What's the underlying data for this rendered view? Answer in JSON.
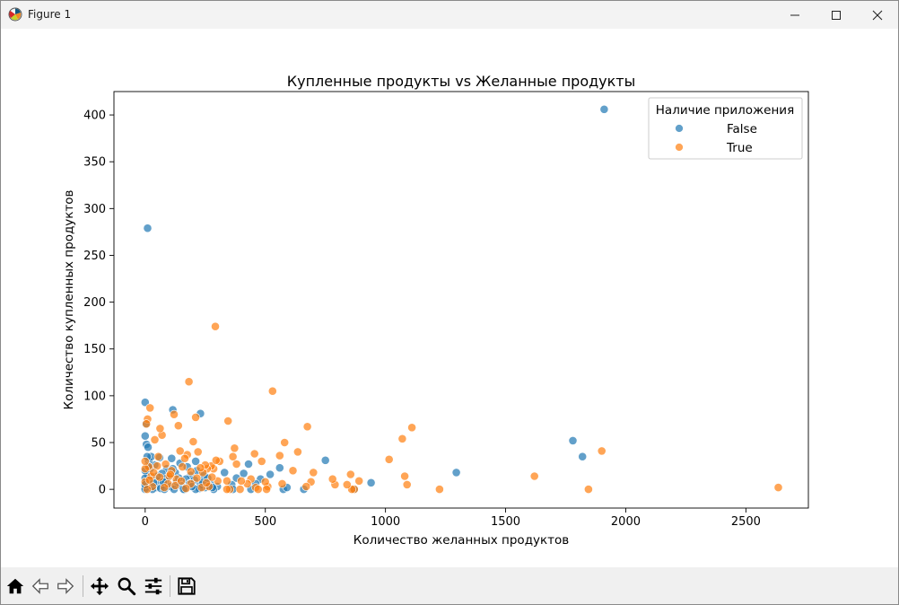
{
  "window": {
    "title": "Figure 1",
    "icons": {
      "app": "matplotlib-figure-icon",
      "minimize": "minimize-icon",
      "maximize": "maximize-icon",
      "close": "close-icon"
    }
  },
  "toolbar": {
    "buttons": [
      {
        "name": "home-button",
        "icon": "home-icon"
      },
      {
        "name": "back-button",
        "icon": "arrow-left-icon"
      },
      {
        "name": "forward-button",
        "icon": "arrow-right-icon"
      },
      {
        "name": "pan-button",
        "icon": "move-icon"
      },
      {
        "name": "zoom-button",
        "icon": "magnifier-icon"
      },
      {
        "name": "configure-subplots-button",
        "icon": "sliders-icon"
      },
      {
        "name": "save-button",
        "icon": "floppy-disk-icon"
      }
    ]
  },
  "chart_data": {
    "type": "scatter",
    "title": "Купленные продукты vs Желанные продукты",
    "xlabel": "Количество желанных продуктов",
    "ylabel": "Количество купленных продуктов",
    "xlim": [
      -130,
      2760
    ],
    "ylim": [
      -20,
      425
    ],
    "xticks": [
      0,
      500,
      1000,
      1500,
      2000,
      2500
    ],
    "yticks": [
      0,
      50,
      100,
      150,
      200,
      250,
      300,
      350,
      400
    ],
    "grid": false,
    "legend": {
      "title": "Наличие приложения",
      "placement": "top-right"
    },
    "series": [
      {
        "name": "False",
        "color": "#1f77b4",
        "points": [
          [
            1910,
            406
          ],
          [
            10,
            279
          ],
          [
            0,
            93
          ],
          [
            115,
            85
          ],
          [
            230,
            81
          ],
          [
            0,
            57
          ],
          [
            5,
            48
          ],
          [
            12,
            45
          ],
          [
            1780,
            52
          ],
          [
            1820,
            35
          ],
          [
            1295,
            18
          ],
          [
            940,
            7
          ],
          [
            750,
            31
          ],
          [
            560,
            23
          ],
          [
            520,
            16
          ],
          [
            480,
            11
          ],
          [
            460,
            6
          ],
          [
            430,
            27
          ],
          [
            410,
            17
          ],
          [
            380,
            12
          ],
          [
            360,
            5
          ],
          [
            330,
            18
          ],
          [
            300,
            3
          ],
          [
            270,
            6
          ],
          [
            250,
            2
          ],
          [
            230,
            5
          ],
          [
            210,
            30
          ],
          [
            190,
            15
          ],
          [
            170,
            11
          ],
          [
            150,
            4
          ],
          [
            130,
            7
          ],
          [
            110,
            33
          ],
          [
            100,
            14
          ],
          [
            90,
            22
          ],
          [
            80,
            5
          ],
          [
            70,
            17
          ],
          [
            60,
            34
          ],
          [
            50,
            9
          ],
          [
            40,
            26
          ],
          [
            30,
            12
          ],
          [
            20,
            4
          ],
          [
            10,
            16
          ],
          [
            5,
            7
          ],
          [
            0,
            2
          ],
          [
            0,
            20
          ],
          [
            0,
            12
          ],
          [
            15,
            30
          ],
          [
            25,
            35
          ],
          [
            45,
            2
          ],
          [
            65,
            1
          ],
          [
            85,
            9
          ],
          [
            105,
            3
          ],
          [
            125,
            18
          ],
          [
            145,
            28
          ],
          [
            165,
            0
          ],
          [
            185,
            6
          ],
          [
            205,
            10
          ],
          [
            225,
            1
          ],
          [
            245,
            15
          ],
          [
            265,
            4
          ],
          [
            285,
            0
          ],
          [
            575,
            0
          ],
          [
            590,
            2
          ],
          [
            660,
            0
          ],
          [
            870,
            0
          ],
          [
            440,
            0
          ],
          [
            365,
            0
          ],
          [
            210,
            0
          ],
          [
            160,
            0
          ],
          [
            120,
            0
          ],
          [
            80,
            0
          ],
          [
            30,
            0
          ],
          [
            0,
            0
          ],
          [
            0,
            5
          ],
          [
            50,
            14
          ],
          [
            90,
            12
          ],
          [
            175,
            24
          ],
          [
            195,
            3
          ],
          [
            215,
            20
          ],
          [
            240,
            8
          ],
          [
            260,
            12
          ],
          [
            280,
            2
          ],
          [
            140,
            12
          ],
          [
            115,
            22
          ],
          [
            75,
            8
          ],
          [
            35,
            7
          ],
          [
            20,
            22
          ],
          [
            8,
            35
          ],
          [
            3,
            70
          ],
          [
            12,
            25
          ]
        ]
      },
      {
        "name": "True",
        "color": "#ff7f0e",
        "points": [
          [
            2635,
            2
          ],
          [
            1900,
            41
          ],
          [
            1845,
            0
          ],
          [
            1620,
            14
          ],
          [
            1225,
            0
          ],
          [
            1110,
            66
          ],
          [
            1090,
            5
          ],
          [
            1080,
            14
          ],
          [
            1070,
            54
          ],
          [
            1015,
            32
          ],
          [
            890,
            9
          ],
          [
            870,
            0
          ],
          [
            860,
            0
          ],
          [
            855,
            16
          ],
          [
            840,
            5
          ],
          [
            790,
            5
          ],
          [
            780,
            11
          ],
          [
            700,
            18
          ],
          [
            690,
            8
          ],
          [
            675,
            67
          ],
          [
            670,
            3
          ],
          [
            635,
            40
          ],
          [
            615,
            20
          ],
          [
            580,
            50
          ],
          [
            570,
            6
          ],
          [
            560,
            36
          ],
          [
            530,
            105
          ],
          [
            510,
            3
          ],
          [
            500,
            8
          ],
          [
            485,
            30
          ],
          [
            460,
            2
          ],
          [
            455,
            38
          ],
          [
            440,
            11
          ],
          [
            425,
            6
          ],
          [
            400,
            9
          ],
          [
            380,
            27
          ],
          [
            372,
            44
          ],
          [
            365,
            35
          ],
          [
            352,
            0
          ],
          [
            345,
            73
          ],
          [
            340,
            9
          ],
          [
            310,
            30
          ],
          [
            302,
            9
          ],
          [
            292,
            174
          ],
          [
            285,
            22
          ],
          [
            275,
            25
          ],
          [
            265,
            3
          ],
          [
            258,
            22
          ],
          [
            250,
            26
          ],
          [
            240,
            18
          ],
          [
            230,
            23
          ],
          [
            220,
            40
          ],
          [
            210,
            77
          ],
          [
            200,
            51
          ],
          [
            190,
            6
          ],
          [
            182,
            115
          ],
          [
            175,
            37
          ],
          [
            165,
            33
          ],
          [
            155,
            24
          ],
          [
            145,
            41
          ],
          [
            138,
            68
          ],
          [
            130,
            11
          ],
          [
            120,
            80
          ],
          [
            110,
            20
          ],
          [
            100,
            14
          ],
          [
            95,
            6
          ],
          [
            80,
            2
          ],
          [
            70,
            58
          ],
          [
            62,
            65
          ],
          [
            55,
            35
          ],
          [
            50,
            25
          ],
          [
            40,
            53
          ],
          [
            30,
            3
          ],
          [
            25,
            14
          ],
          [
            20,
            87
          ],
          [
            15,
            24
          ],
          [
            10,
            75
          ],
          [
            5,
            70
          ],
          [
            0,
            22
          ],
          [
            0,
            8
          ],
          [
            0,
            30
          ],
          [
            8,
            0
          ],
          [
            18,
            10
          ],
          [
            35,
            18
          ],
          [
            60,
            13
          ],
          [
            85,
            27
          ],
          [
            105,
            16
          ],
          [
            125,
            4
          ],
          [
            150,
            9
          ],
          [
            170,
            1
          ],
          [
            190,
            19
          ],
          [
            215,
            12
          ],
          [
            235,
            2
          ],
          [
            255,
            7
          ],
          [
            278,
            13
          ],
          [
            295,
            31
          ],
          [
            340,
            0
          ],
          [
            395,
            0
          ],
          [
            470,
            0
          ],
          [
            505,
            0
          ]
        ]
      }
    ]
  }
}
